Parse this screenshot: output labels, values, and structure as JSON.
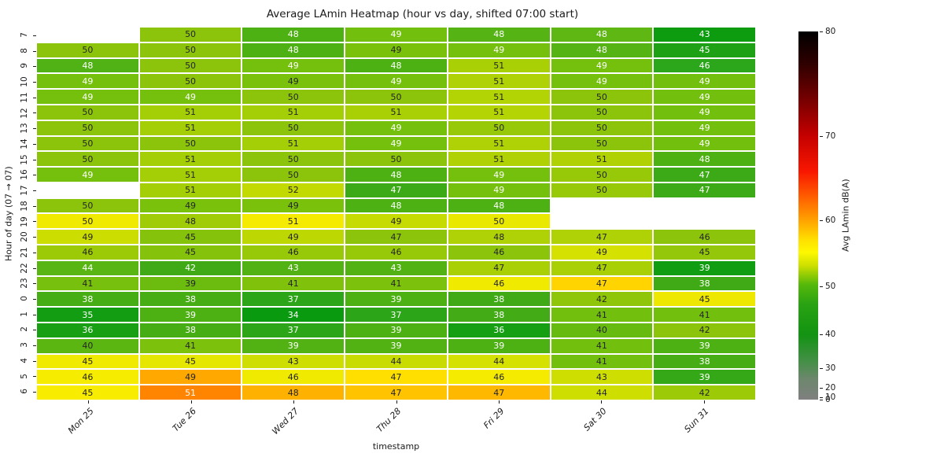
{
  "chart_data": {
    "type": "heatmap",
    "title": "Average LAmin Heatmap (hour vs day, shifted 07:00 start)",
    "xlabel": "timestamp",
    "ylabel": "Hour of day (07 → 07)",
    "x_ticklabels": [
      "Mon 25",
      "Tue 26",
      "Wed 27",
      "Thu 28",
      "Fri 29",
      "Sat 30",
      "Sun 31"
    ],
    "y_ticklabels": [
      "7",
      "8",
      "9",
      "10",
      "11",
      "12",
      "13",
      "14",
      "15",
      "16",
      "17",
      "18",
      "19",
      "20",
      "21",
      "22",
      "23",
      "0",
      "1",
      "2",
      "3",
      "4",
      "5",
      "6"
    ],
    "values": [
      [
        null,
        50,
        48,
        49,
        48,
        48,
        43
      ],
      [
        50,
        50,
        48,
        49,
        49,
        48,
        45
      ],
      [
        48,
        50,
        49,
        48,
        51,
        49,
        46
      ],
      [
        49,
        50,
        49,
        49,
        51,
        49,
        49
      ],
      [
        49,
        49,
        50,
        50,
        51,
        50,
        49
      ],
      [
        50,
        51,
        51,
        51,
        51,
        50,
        49
      ],
      [
        50,
        51,
        50,
        49,
        50,
        50,
        49
      ],
      [
        50,
        50,
        51,
        49,
        51,
        50,
        49
      ],
      [
        50,
        51,
        50,
        50,
        51,
        51,
        48
      ],
      [
        49,
        51,
        50,
        48,
        49,
        50,
        47
      ],
      [
        null,
        51,
        52,
        47,
        49,
        50,
        47
      ],
      [
        50,
        49,
        49,
        48,
        48,
        null,
        null
      ],
      [
        50,
        48,
        51,
        49,
        50,
        null,
        null
      ],
      [
        49,
        45,
        49,
        47,
        48,
        47,
        46
      ],
      [
        46,
        45,
        46,
        46,
        46,
        49,
        45
      ],
      [
        44,
        42,
        43,
        43,
        47,
        47,
        39
      ],
      [
        41,
        39,
        41,
        41,
        46,
        47,
        38
      ],
      [
        38,
        38,
        37,
        39,
        38,
        42,
        45
      ],
      [
        35,
        39,
        34,
        37,
        38,
        41,
        41
      ],
      [
        36,
        38,
        37,
        39,
        36,
        40,
        42
      ],
      [
        40,
        41,
        39,
        39,
        39,
        41,
        39
      ],
      [
        45,
        45,
        43,
        44,
        44,
        41,
        38
      ],
      [
        46,
        49,
        46,
        47,
        46,
        43,
        39
      ],
      [
        45,
        51,
        48,
        47,
        47,
        44,
        42
      ]
    ],
    "cell_colors": [
      [
        null,
        "#8cc40b",
        "#4db114",
        "#72bf0e",
        "#55b414",
        "#5eb712",
        "#0d9b10"
      ],
      [
        "#8cc40b",
        "#8cc40b",
        "#4db114",
        "#7ac10c",
        "#74c00d",
        "#55b414",
        "#1ea114"
      ],
      [
        "#50b214",
        "#8cc40b",
        "#74c00d",
        "#4db114",
        "#a8d005",
        "#74c00d",
        "#2ca61a"
      ],
      [
        "#74c00d",
        "#8cc40b",
        "#7ac10c",
        "#74c00d",
        "#aed205",
        "#74c00d",
        "#72bf0e"
      ],
      [
        "#74c00d",
        "#74c00d",
        "#8cc40b",
        "#8cc40b",
        "#b2d304",
        "#8cc40b",
        "#72bf0e"
      ],
      [
        "#8cc40b",
        "#a4ce06",
        "#a4ce06",
        "#a8d005",
        "#b5d404",
        "#8cc40b",
        "#72bf0e"
      ],
      [
        "#8cc40b",
        "#a4ce06",
        "#8cc40b",
        "#74c00d",
        "#97c908",
        "#8cc40b",
        "#72bf0e"
      ],
      [
        "#8cc40b",
        "#8cc40b",
        "#a4ce06",
        "#74c00d",
        "#aed205",
        "#8cc40b",
        "#72bf0e"
      ],
      [
        "#8cc40b",
        "#a4ce06",
        "#8cc40b",
        "#8cc40b",
        "#b0d204",
        "#b0d204",
        "#4db114"
      ],
      [
        "#74c00d",
        "#a4ce06",
        "#8cc40b",
        "#4db114",
        "#74c00d",
        "#97c908",
        "#3caa16"
      ],
      [
        null,
        "#a4ce06",
        "#c2d902",
        "#3caa16",
        "#74c00d",
        "#97c908",
        "#3caa16"
      ],
      [
        "#8cc40b",
        "#7ac10c",
        "#7ac10c",
        "#4db114",
        "#4db114",
        null,
        null
      ],
      [
        "#f0ea00",
        "#9fcb07",
        "#f4eb00",
        "#c6db02",
        "#e8e800",
        null,
        null
      ],
      [
        "#cbdd01",
        "#84c20b",
        "#bdd703",
        "#8cc40b",
        "#aed205",
        "#aed205",
        "#8cc40b"
      ],
      [
        "#9cca07",
        "#84c20b",
        "#98c908",
        "#98c908",
        "#8cc40b",
        "#d5e100",
        "#94c709"
      ],
      [
        "#58b513",
        "#3faa15",
        "#52b214",
        "#52b214",
        "#a8d005",
        "#a8d005",
        "#119d11"
      ],
      [
        "#77c00d",
        "#6cbc10",
        "#80c10c",
        "#7cc10c",
        "#f0e900",
        "#ffd400",
        "#3faa15"
      ],
      [
        "#46ad15",
        "#46ad15",
        "#2ca518",
        "#4db114",
        "#3faa15",
        "#90c60a",
        "#eee800"
      ],
      [
        "#139d12",
        "#4db114",
        "#0a9a10",
        "#2ca518",
        "#42ab16",
        "#72bf0e",
        "#72bf0e"
      ],
      [
        "#189f13",
        "#46ad15",
        "#2ca518",
        "#4db114",
        "#169f13",
        "#66ba10",
        "#8cc40b"
      ],
      [
        "#5cb612",
        "#7cc10c",
        "#52b214",
        "#52b214",
        "#4db114",
        "#72bf0e",
        "#4db114"
      ],
      [
        "#f0ea00",
        "#e6e700",
        "#cede01",
        "#c9dc02",
        "#d5e100",
        "#72bf0e",
        "#46ad15"
      ],
      [
        "#f6ec00",
        "#ffa800",
        "#f0e900",
        "#ffdf00",
        "#f4eb00",
        "#cede01",
        "#35a817"
      ],
      [
        "#f8ec00",
        "#ff8400",
        "#ffb100",
        "#ffc300",
        "#ffb800",
        "#cede01",
        "#9cca07"
      ]
    ],
    "annot_text_colors": [
      [
        null,
        "b",
        "w",
        "w",
        "w",
        "w",
        "w"
      ],
      [
        "b",
        "b",
        "w",
        "b",
        "w",
        "w",
        "w"
      ],
      [
        "w",
        "b",
        "w",
        "w",
        "b",
        "w",
        "w"
      ],
      [
        "w",
        "b",
        "b",
        "w",
        "b",
        "w",
        "w"
      ],
      [
        "w",
        "w",
        "b",
        "b",
        "b",
        "b",
        "w"
      ],
      [
        "b",
        "b",
        "b",
        "b",
        "b",
        "b",
        "w"
      ],
      [
        "b",
        "b",
        "b",
        "w",
        "b",
        "b",
        "w"
      ],
      [
        "b",
        "b",
        "b",
        "w",
        "b",
        "b",
        "w"
      ],
      [
        "b",
        "b",
        "b",
        "b",
        "b",
        "b",
        "w"
      ],
      [
        "w",
        "b",
        "b",
        "w",
        "w",
        "b",
        "w"
      ],
      [
        null,
        "b",
        "b",
        "w",
        "w",
        "b",
        "w"
      ],
      [
        "b",
        "b",
        "b",
        "w",
        "w",
        null,
        null
      ],
      [
        "b",
        "b",
        "b",
        "b",
        "b",
        null,
        null
      ],
      [
        "b",
        "b",
        "b",
        "b",
        "b",
        "b",
        "b"
      ],
      [
        "b",
        "b",
        "b",
        "b",
        "b",
        "b",
        "b"
      ],
      [
        "w",
        "w",
        "w",
        "w",
        "b",
        "b",
        "w"
      ],
      [
        "b",
        "b",
        "b",
        "b",
        "b",
        "b",
        "w"
      ],
      [
        "w",
        "w",
        "w",
        "w",
        "w",
        "b",
        "b"
      ],
      [
        "w",
        "w",
        "w",
        "w",
        "w",
        "b",
        "b"
      ],
      [
        "w",
        "w",
        "w",
        "w",
        "w",
        "b",
        "b"
      ],
      [
        "b",
        "b",
        "w",
        "w",
        "w",
        "b",
        "w"
      ],
      [
        "b",
        "b",
        "b",
        "b",
        "b",
        "b",
        "w"
      ],
      [
        "b",
        "b",
        "b",
        "b",
        "b",
        "b",
        "w"
      ],
      [
        "b",
        "w",
        "b",
        "b",
        "b",
        "b",
        "b"
      ]
    ],
    "colorbar": {
      "label": "Avg LAmin dB(A)",
      "ticks": [
        80,
        70,
        60,
        50,
        40,
        30,
        20,
        10,
        0
      ],
      "vmin": 0,
      "vmax": 80,
      "scale_gamma": 2.5,
      "gradient": [
        {
          "pos": 0.0,
          "color": "#000000"
        },
        {
          "pos": 0.09,
          "color": "#300000"
        },
        {
          "pos": 0.19,
          "color": "#7a0000"
        },
        {
          "pos": 0.282,
          "color": "#c40000"
        },
        {
          "pos": 0.38,
          "color": "#f81700"
        },
        {
          "pos": 0.45,
          "color": "#ff5f00"
        },
        {
          "pos": 0.509,
          "color": "#ff9e00"
        },
        {
          "pos": 0.565,
          "color": "#ffdf00"
        },
        {
          "pos": 0.6,
          "color": "#fdf800"
        },
        {
          "pos": 0.635,
          "color": "#cfe000"
        },
        {
          "pos": 0.688,
          "color": "#55b80a"
        },
        {
          "pos": 0.74,
          "color": "#2aa313"
        },
        {
          "pos": 0.823,
          "color": "#129312"
        },
        {
          "pos": 0.9,
          "color": "#478f4a"
        },
        {
          "pos": 0.944,
          "color": "#6d876d"
        },
        {
          "pos": 1.0,
          "color": "#7f7f7f"
        }
      ]
    }
  }
}
